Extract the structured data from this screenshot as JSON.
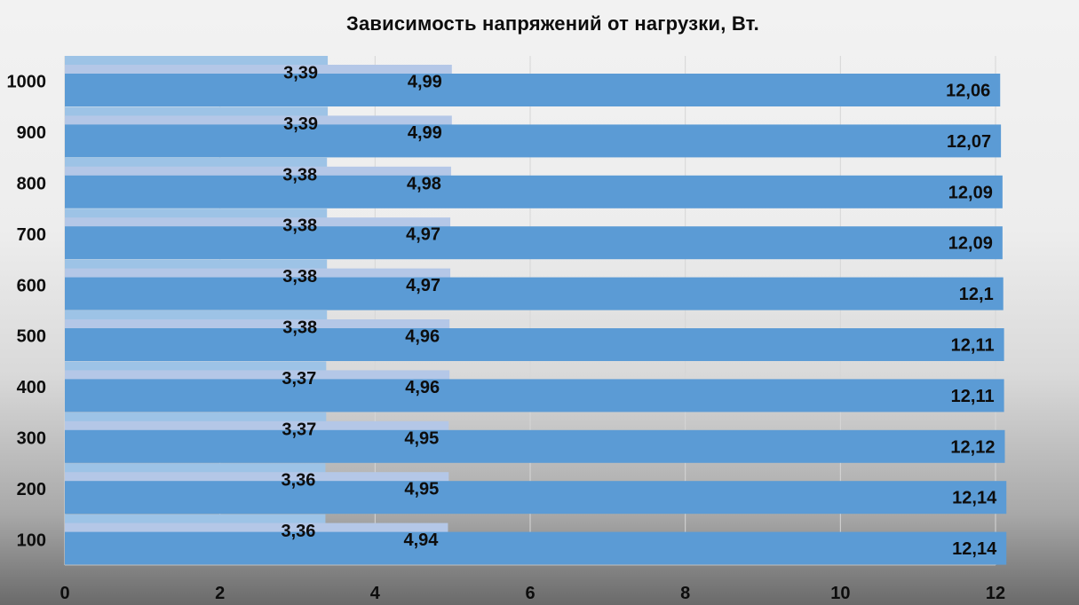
{
  "chart_data": {
    "type": "bar",
    "orientation": "horizontal",
    "title": "Зависимость напряжений от нагрузки, Вт.",
    "xlabel": "",
    "ylabel": "",
    "categories": [
      "100",
      "200",
      "300",
      "400",
      "500",
      "600",
      "700",
      "800",
      "900",
      "1000"
    ],
    "xlim": [
      0,
      12
    ],
    "xticks": [
      0,
      2,
      4,
      6,
      8,
      10,
      12
    ],
    "grid": true,
    "legend": "none",
    "series": [
      {
        "color": "#9dc3e6",
        "values": [
          3.36,
          3.36,
          3.37,
          3.37,
          3.38,
          3.38,
          3.38,
          3.38,
          3.39,
          3.39
        ],
        "labels": [
          "3,36",
          "3,36",
          "3,37",
          "3,37",
          "3,38",
          "3,38",
          "3,38",
          "3,38",
          "3,39",
          "3,39"
        ]
      },
      {
        "color": "#b4c7e7",
        "values": [
          4.94,
          4.95,
          4.95,
          4.96,
          4.96,
          4.97,
          4.97,
          4.98,
          4.99,
          4.99
        ],
        "labels": [
          "4,94",
          "4,95",
          "4,95",
          "4,96",
          "4,96",
          "4,97",
          "4,97",
          "4,98",
          "4,99",
          "4,99"
        ]
      },
      {
        "color": "#5b9bd5",
        "values": [
          12.14,
          12.14,
          12.12,
          12.11,
          12.11,
          12.1,
          12.09,
          12.09,
          12.07,
          12.06
        ],
        "labels": [
          "12,14",
          "12,14",
          "12,12",
          "12,11",
          "12,11",
          "12,1",
          "12,09",
          "12,09",
          "12,07",
          "12,06"
        ]
      }
    ]
  }
}
